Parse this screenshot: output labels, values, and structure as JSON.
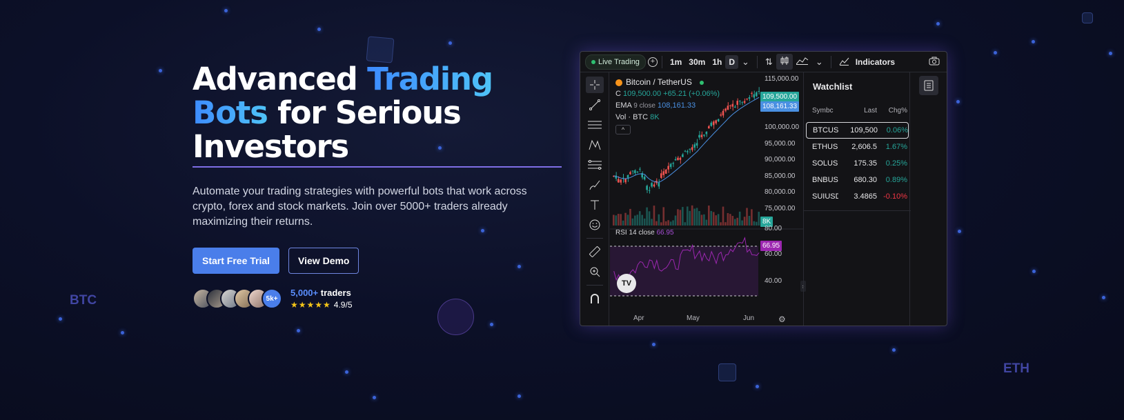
{
  "hero": {
    "title_part1": "Advanced ",
    "title_highlight1": "Trading",
    "title_highlight2": "Bots",
    "title_part2": " for Serious Investors",
    "description": "Automate your trading strategies with powerful bots that work across crypto, forex and stock markets. Join over 5000+ traders already maximizing their returns.",
    "primary_button": "Start Free Trial",
    "secondary_button": "View Demo",
    "avatar_more": "5k+",
    "traders_count": "5,000+",
    "traders_label": " traders",
    "stars": "★★★★★",
    "rating": "4.9/5"
  },
  "background": {
    "btc_label": "BTC",
    "eth_label": "ETH"
  },
  "widget": {
    "live_badge": "Live Trading",
    "timeframes": [
      "1m",
      "30m",
      "1h",
      "D"
    ],
    "indicators_label": "Indicators",
    "symbol": "Bitcoin / TetherUS",
    "ohlc_prefix": "C",
    "ohlc_value": "109,500.00",
    "ohlc_change": "+65.21 (+0.06%)",
    "ema_label": "EMA",
    "ema_params": "9 close",
    "ema_value": "108,161.33",
    "vol_label": "Vol · BTC",
    "vol_value": "8K",
    "rsi_label": "RSI",
    "rsi_params": "14 close",
    "rsi_value": "66.95",
    "logo_text": "TV",
    "x_labels": [
      "Apr",
      "May",
      "Jun"
    ],
    "price_labels": [
      "115,000.00",
      "100,000.00",
      "95,000.00",
      "90,000.00",
      "85,000.00",
      "80,000.00",
      "75,000.00"
    ],
    "price_tag": "109,500.00",
    "ema_tag": "108,161.33",
    "vol_tag": "8K",
    "rsi_axis": [
      "80.00",
      "60.00",
      "40.00"
    ],
    "rsi_tag": "66.95",
    "colors": {
      "up": "#26a69a",
      "down": "#ef5350",
      "ema": "#4a90e2",
      "rsi": "#9c27b0"
    }
  },
  "watchlist": {
    "title": "Watchlist",
    "columns": [
      "Symbc",
      "Last",
      "Chg%"
    ],
    "rows": [
      {
        "symbol": "BTCUSDT",
        "last": "109,500",
        "change": "0.06%",
        "dir": "pos"
      },
      {
        "symbol": "ETHUSDT",
        "last": "2,606.5",
        "change": "1.67%",
        "dir": "pos"
      },
      {
        "symbol": "SOLUSDT",
        "last": "175.35",
        "change": "0.25%",
        "dir": "pos"
      },
      {
        "symbol": "BNBUSDT",
        "last": "680.30",
        "change": "0.89%",
        "dir": "pos"
      },
      {
        "symbol": "SUIUSDT",
        "last": "3.4865",
        "change": "-0.10%",
        "dir": "neg"
      }
    ]
  }
}
